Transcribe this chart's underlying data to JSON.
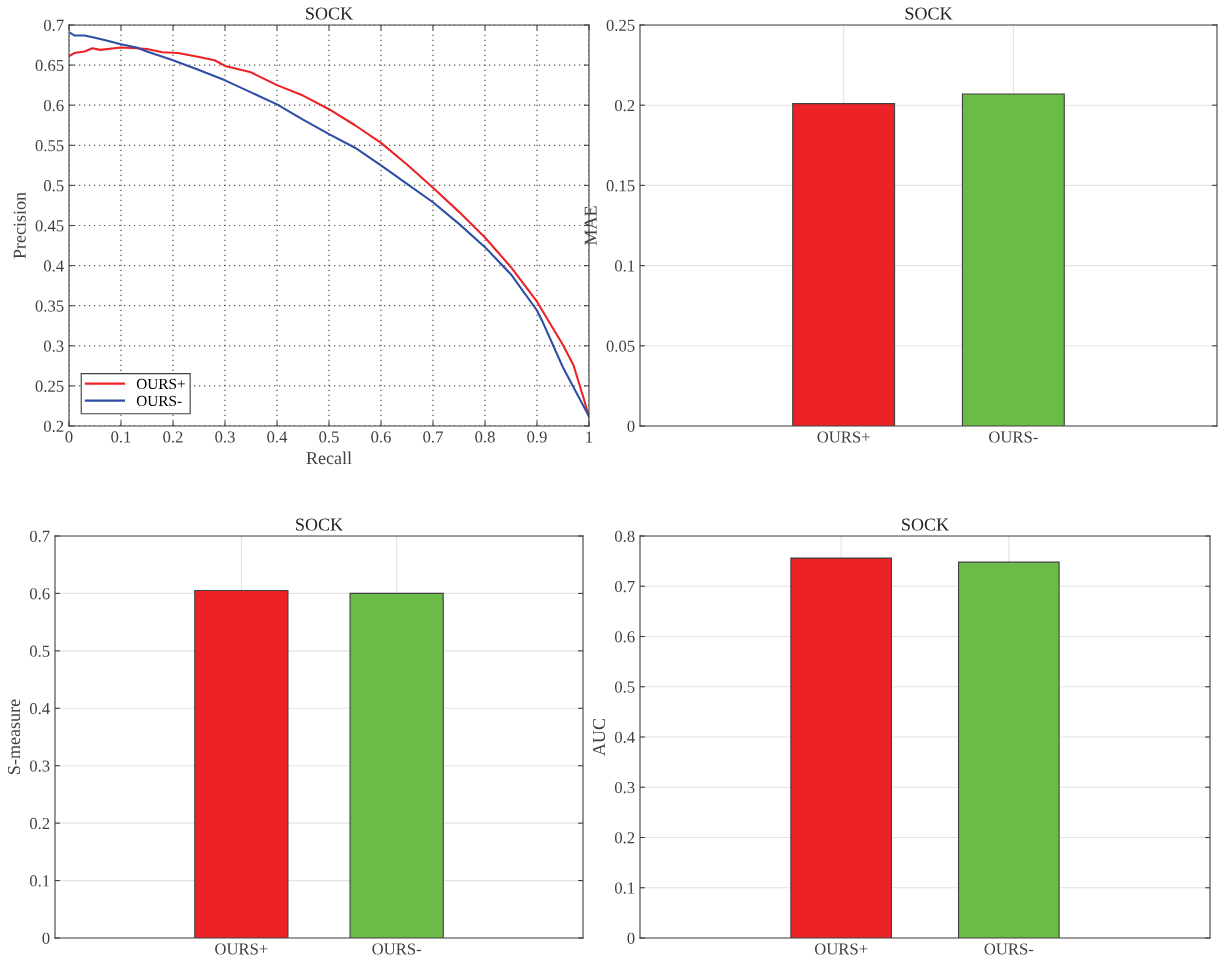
{
  "chart_data": [
    {
      "type": "line",
      "title": "SOCK",
      "xlabel": "Recall",
      "ylabel": "Precision",
      "xlim": [
        0,
        1
      ],
      "ylim": [
        0.2,
        0.7
      ],
      "xticks": [
        0,
        0.1,
        0.2,
        0.3,
        0.4,
        0.5,
        0.6,
        0.7,
        0.8,
        0.9,
        1
      ],
      "yticks": [
        0.2,
        0.25,
        0.3,
        0.35,
        0.4,
        0.45,
        0.5,
        0.55,
        0.6,
        0.65,
        0.7
      ],
      "grid": true,
      "legend": "bottom left",
      "line_style": "solid",
      "series": [
        {
          "name": "OURS+",
          "color": "#ec2227",
          "x": [
            0,
            0.01,
            0.03,
            0.045,
            0.06,
            0.1,
            0.13,
            0.15,
            0.18,
            0.21,
            0.25,
            0.28,
            0.3,
            0.35,
            0.4,
            0.45,
            0.5,
            0.55,
            0.6,
            0.65,
            0.7,
            0.75,
            0.8,
            0.85,
            0.9,
            0.95,
            0.97,
            0.99,
            1.0
          ],
          "values": [
            0.661,
            0.665,
            0.667,
            0.671,
            0.669,
            0.672,
            0.671,
            0.67,
            0.666,
            0.665,
            0.66,
            0.656,
            0.649,
            0.641,
            0.625,
            0.612,
            0.595,
            0.575,
            0.553,
            0.526,
            0.497,
            0.467,
            0.435,
            0.398,
            0.355,
            0.301,
            0.276,
            0.234,
            0.211
          ]
        },
        {
          "name": "OURS-",
          "color": "#2e4fa3",
          "x": [
            0.003,
            0.01,
            0.03,
            0.05,
            0.07,
            0.1,
            0.13,
            0.15,
            0.2,
            0.25,
            0.3,
            0.35,
            0.4,
            0.45,
            0.5,
            0.55,
            0.6,
            0.65,
            0.7,
            0.75,
            0.8,
            0.85,
            0.9,
            0.91,
            0.95,
            1.0
          ],
          "values": [
            0.69,
            0.687,
            0.687,
            0.684,
            0.681,
            0.676,
            0.672,
            0.667,
            0.656,
            0.644,
            0.631,
            0.616,
            0.601,
            0.582,
            0.564,
            0.547,
            0.525,
            0.502,
            0.479,
            0.452,
            0.423,
            0.389,
            0.344,
            0.331,
            0.273,
            0.212
          ]
        }
      ]
    },
    {
      "type": "bar",
      "title": "SOCK",
      "ylabel": "MAE",
      "categories": [
        "OURS+",
        "OURS-"
      ],
      "values": [
        0.201,
        0.207
      ],
      "colors": [
        "#ec2227",
        "#6bbb47"
      ],
      "ylim": [
        0,
        0.25
      ],
      "yticks": [
        0,
        0.05,
        0.1,
        0.15,
        0.2,
        0.25
      ],
      "grid": true
    },
    {
      "type": "bar",
      "title": "SOCK",
      "ylabel": "S-measure",
      "categories": [
        "OURS+",
        "OURS-"
      ],
      "values": [
        0.605,
        0.6
      ],
      "colors": [
        "#ec2227",
        "#6bbb47"
      ],
      "ylim": [
        0,
        0.7
      ],
      "yticks": [
        0,
        0.1,
        0.2,
        0.3,
        0.4,
        0.5,
        0.6,
        0.7
      ],
      "grid": true
    },
    {
      "type": "bar",
      "title": "SOCK",
      "ylabel": "AUC",
      "categories": [
        "OURS+",
        "OURS-"
      ],
      "values": [
        0.756,
        0.748
      ],
      "colors": [
        "#ec2227",
        "#6bbb47"
      ],
      "ylim": [
        0,
        0.8
      ],
      "yticks": [
        0,
        0.1,
        0.2,
        0.3,
        0.4,
        0.5,
        0.6,
        0.7,
        0.8
      ],
      "grid": true
    }
  ]
}
